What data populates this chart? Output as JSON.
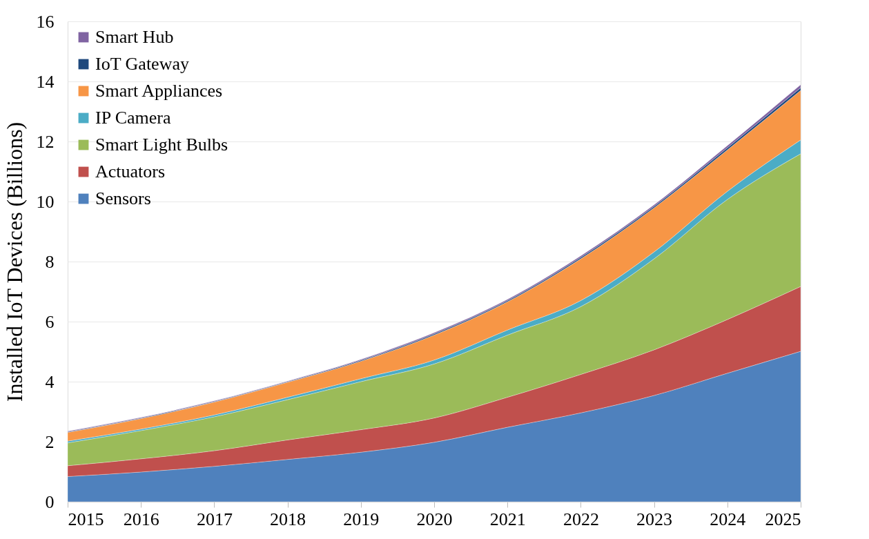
{
  "chart_data": {
    "type": "area",
    "stacked": true,
    "ylabel": "Installed IoT Devices (Billions)",
    "categories": [
      "2015",
      "2016",
      "2017",
      "2018",
      "2019",
      "2020",
      "2021",
      "2022",
      "2023",
      "2024",
      "2025"
    ],
    "series": [
      {
        "name": "Sensors",
        "color": "#4f81bd",
        "values": [
          0.84,
          0.99,
          1.18,
          1.41,
          1.65,
          1.98,
          2.48,
          2.96,
          3.54,
          4.28,
          5.01
        ]
      },
      {
        "name": "Actuators",
        "color": "#c0504d",
        "values": [
          0.36,
          0.44,
          0.52,
          0.65,
          0.75,
          0.81,
          1.0,
          1.28,
          1.52,
          1.79,
          2.16
        ]
      },
      {
        "name": "Smart Light Bulbs",
        "color": "#9bbb59",
        "values": [
          0.76,
          0.94,
          1.13,
          1.34,
          1.6,
          1.8,
          2.07,
          2.26,
          3.03,
          4.0,
          4.42
        ]
      },
      {
        "name": "IP Camera",
        "color": "#4bacc6",
        "values": [
          0.06,
          0.05,
          0.06,
          0.08,
          0.1,
          0.13,
          0.17,
          0.2,
          0.23,
          0.27,
          0.46
        ]
      },
      {
        "name": "Smart Appliances",
        "color": "#f79646",
        "values": [
          0.29,
          0.35,
          0.43,
          0.5,
          0.58,
          0.83,
          0.94,
          1.39,
          1.47,
          1.38,
          1.65
        ]
      },
      {
        "name": "IoT Gateway",
        "color": "#1f497d",
        "values": [
          0.02,
          0.02,
          0.02,
          0.02,
          0.03,
          0.04,
          0.04,
          0.05,
          0.05,
          0.07,
          0.09
        ]
      },
      {
        "name": "Smart Hub",
        "color": "#8064a2",
        "values": [
          0.02,
          0.02,
          0.02,
          0.02,
          0.03,
          0.04,
          0.04,
          0.05,
          0.05,
          0.07,
          0.1
        ]
      }
    ],
    "ylim": [
      0,
      16
    ],
    "yticks": [
      0,
      2,
      4,
      6,
      8,
      10,
      12,
      14,
      16
    ],
    "grid": "y",
    "legend": "top left"
  }
}
